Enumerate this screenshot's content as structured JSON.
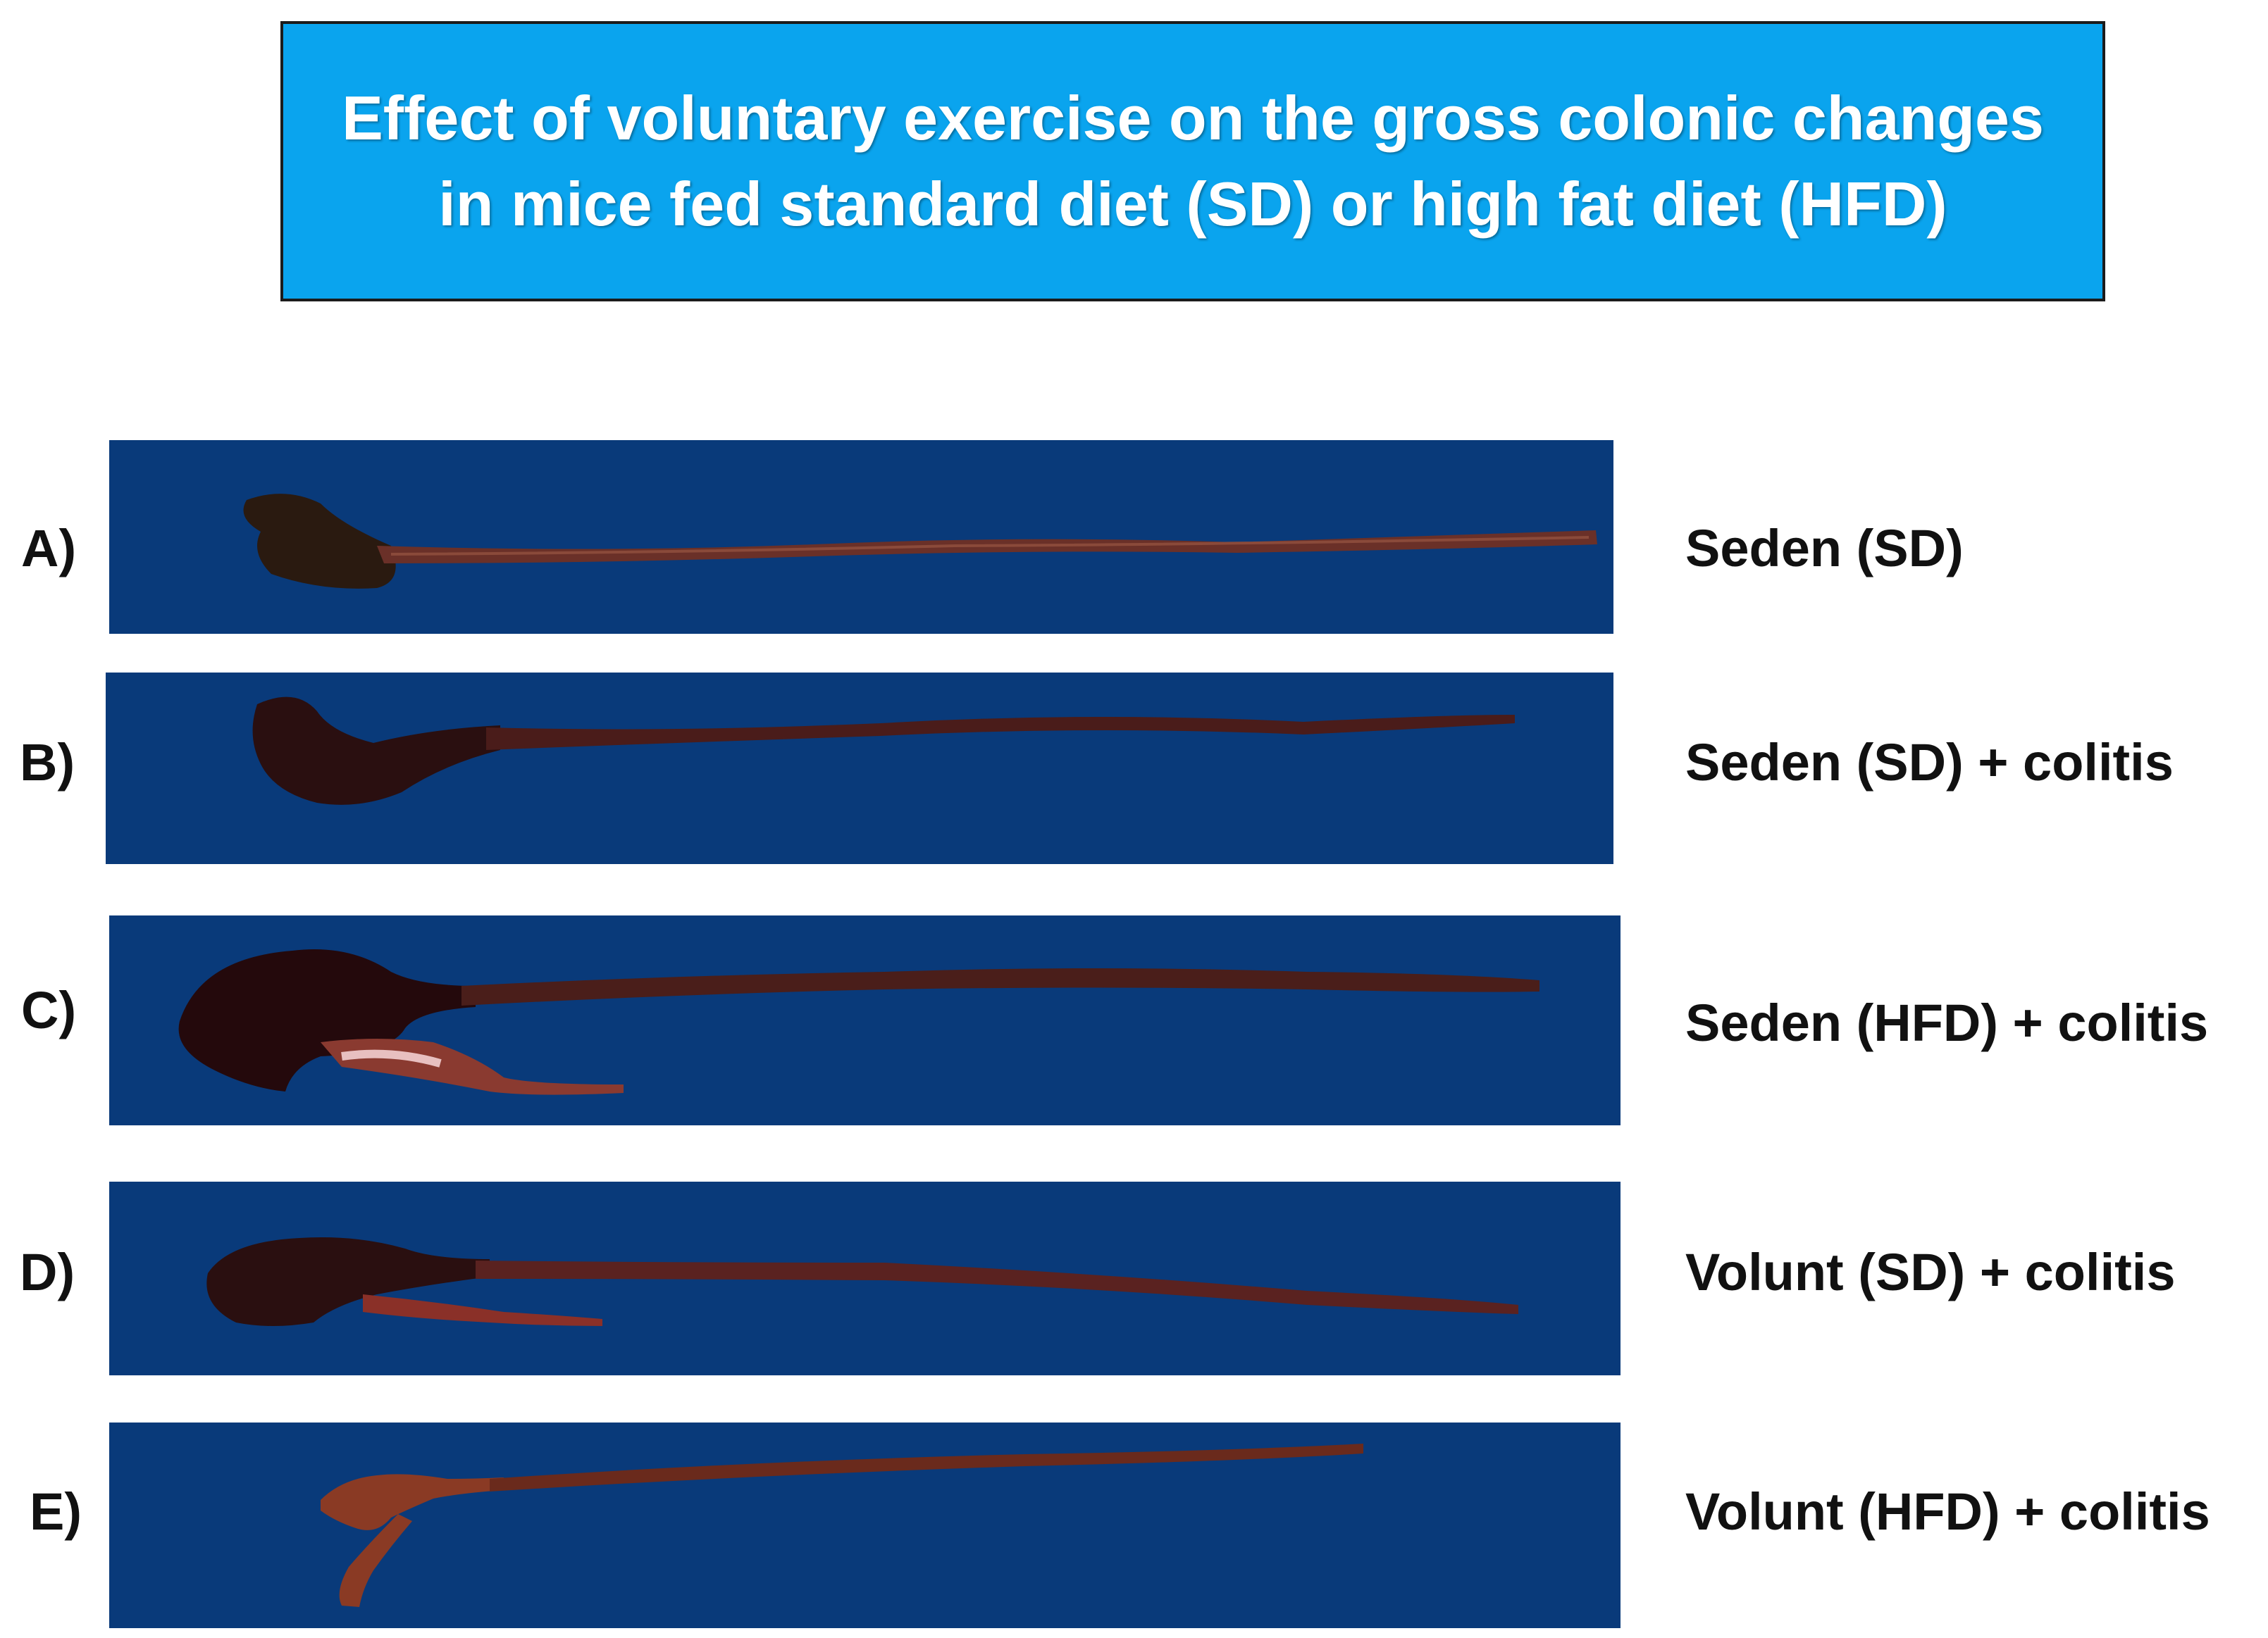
{
  "title": "Effect of voluntary exercise on the gross colonic changes in mice fed standard diet (SD) or high fat diet (HFD)",
  "colors": {
    "title_background": "#0aa4ee",
    "panel_background": "#093a7a",
    "tissue_dark": "#2a0f10",
    "tissue_mid": "#5a2220",
    "tissue_light": "#8a4a3a"
  },
  "panels": [
    {
      "letter": "A)",
      "label": "Seden (SD)"
    },
    {
      "letter": "B)",
      "label": "Seden (SD) + colitis"
    },
    {
      "letter": "C)",
      "label": "Seden (HFD) + colitis"
    },
    {
      "letter": "D)",
      "label": "Volunt (SD) + colitis"
    },
    {
      "letter": "E)",
      "label": "Volunt (HFD) + colitis"
    }
  ]
}
